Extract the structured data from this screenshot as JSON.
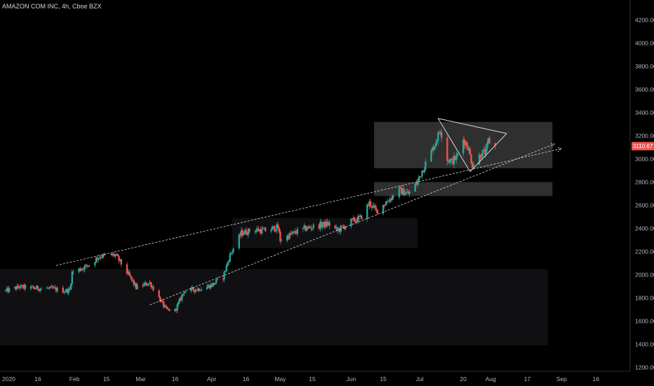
{
  "header": {
    "title": "AMAZON COM INC, 4h, Cboe BZX"
  },
  "colors": {
    "background": "#000000",
    "up": "#26a69a",
    "down": "#ef5350",
    "zone_light": "#2f2f2f",
    "zone_dark": "#101013",
    "trendline": "#d8d8d8",
    "axis_text": "#b2b5be"
  },
  "chart_data": {
    "type": "candlestick",
    "title": "AMAZON COM INC, 4h, Cboe BZX",
    "symbol": "AMAZON COM INC",
    "interval": "4h",
    "exchange": "Cboe BZX",
    "last_price": "3110.67",
    "ylim": [
      1150,
      4300
    ],
    "y_ticks": [
      "4200.00",
      "4000.00",
      "3800.00",
      "3600.00",
      "3400.00",
      "3200.00",
      "3000.00",
      "2800.00",
      "2600.00",
      "2400.00",
      "2200.00",
      "2000.00",
      "1800.00",
      "1600.00",
      "1400.00",
      "1200.00"
    ],
    "x_range": [
      "2020-01-01",
      "2020-09-30"
    ],
    "x_ticks": [
      {
        "label": "2020",
        "date": "2020-01-01"
      },
      {
        "label": "16",
        "date": "2020-01-16"
      },
      {
        "label": "Feb",
        "date": "2020-02-01"
      },
      {
        "label": "15",
        "date": "2020-02-15"
      },
      {
        "label": "Mar",
        "date": "2020-03-01"
      },
      {
        "label": "16",
        "date": "2020-03-16"
      },
      {
        "label": "Apr",
        "date": "2020-04-01"
      },
      {
        "label": "16",
        "date": "2020-04-16"
      },
      {
        "label": "May",
        "date": "2020-05-01"
      },
      {
        "label": "15",
        "date": "2020-05-15"
      },
      {
        "label": "Jun",
        "date": "2020-06-01"
      },
      {
        "label": "15",
        "date": "2020-06-15"
      },
      {
        "label": "Jul",
        "date": "2020-07-01"
      },
      {
        "label": "20",
        "date": "2020-07-20"
      },
      {
        "label": "Aug",
        "date": "2020-08-01"
      },
      {
        "label": "17",
        "date": "2020-08-17"
      },
      {
        "label": "Sep",
        "date": "2020-09-01"
      },
      {
        "label": "16",
        "date": "2020-09-16"
      }
    ],
    "price_path": [
      [
        "2020-01-02",
        1860
      ],
      [
        "2020-01-08",
        1895
      ],
      [
        "2020-01-14",
        1885
      ],
      [
        "2020-01-22",
        1880
      ],
      [
        "2020-01-28",
        1860
      ],
      [
        "2020-01-30",
        1870
      ],
      [
        "2020-01-31",
        2020
      ],
      [
        "2020-02-07",
        2080
      ],
      [
        "2020-02-12",
        2160
      ],
      [
        "2020-02-19",
        2170
      ],
      [
        "2020-02-24",
        2020
      ],
      [
        "2020-02-28",
        1890
      ],
      [
        "2020-03-05",
        1930
      ],
      [
        "2020-03-09",
        1800
      ],
      [
        "2020-03-12",
        1700
      ],
      [
        "2020-03-16",
        1690
      ],
      [
        "2020-03-20",
        1860
      ],
      [
        "2020-03-27",
        1880
      ],
      [
        "2020-04-01",
        1910
      ],
      [
        "2020-04-06",
        1980
      ],
      [
        "2020-04-09",
        2170
      ],
      [
        "2020-04-14",
        2360
      ],
      [
        "2020-04-20",
        2390
      ],
      [
        "2020-04-24",
        2380
      ],
      [
        "2020-04-30",
        2410
      ],
      [
        "2020-05-01",
        2300
      ],
      [
        "2020-05-08",
        2370
      ],
      [
        "2020-05-12",
        2400
      ],
      [
        "2020-05-19",
        2430
      ],
      [
        "2020-05-22",
        2440
      ],
      [
        "2020-05-26",
        2380
      ],
      [
        "2020-06-01",
        2460
      ],
      [
        "2020-06-05",
        2490
      ],
      [
        "2020-06-09",
        2620
      ],
      [
        "2020-06-12",
        2550
      ],
      [
        "2020-06-17",
        2640
      ],
      [
        "2020-06-22",
        2730
      ],
      [
        "2020-06-26",
        2700
      ],
      [
        "2020-06-30",
        2800
      ],
      [
        "2020-07-02",
        2900
      ],
      [
        "2020-07-06",
        3060
      ],
      [
        "2020-07-09",
        3200
      ],
      [
        "2020-07-10",
        3260
      ],
      [
        "2020-07-13",
        3000
      ],
      [
        "2020-07-15",
        2980
      ],
      [
        "2020-07-17",
        3010
      ],
      [
        "2020-07-20",
        3170
      ],
      [
        "2020-07-22",
        3110
      ],
      [
        "2020-07-24",
        2950
      ],
      [
        "2020-07-28",
        3050
      ],
      [
        "2020-07-30",
        3060
      ],
      [
        "2020-07-31",
        3160
      ],
      [
        "2020-08-03",
        3110
      ]
    ],
    "zones": [
      {
        "from": "2019-12-01",
        "to": "2020-08-26",
        "top": 2050,
        "bottom": 1390,
        "shade": "dark"
      },
      {
        "from": "2020-04-10",
        "to": "2020-06-30",
        "top": 2490,
        "bottom": 2230,
        "shade": "dark"
      },
      {
        "from": "2020-06-11",
        "to": "2020-08-28",
        "top": 3320,
        "bottom": 2920,
        "shade": "light"
      },
      {
        "from": "2020-06-11",
        "to": "2020-08-28",
        "top": 2800,
        "bottom": 2680,
        "shade": "light"
      }
    ],
    "trendlines": [
      {
        "x1": "2020-01-24",
        "y1": 2080,
        "x2": "2020-09-01",
        "y2": 3090,
        "style": "dashed",
        "arrow": true
      },
      {
        "x1": "2020-03-05",
        "y1": 1740,
        "x2": "2020-08-29",
        "y2": 3130,
        "style": "dashed",
        "arrow": true
      },
      {
        "x1": "2020-07-09",
        "y1": 3350,
        "x2": "2020-08-08",
        "y2": 3220,
        "style": "solid"
      },
      {
        "x1": "2020-07-09",
        "y1": 3350,
        "x2": "2020-07-23",
        "y2": 2890,
        "style": "solid"
      },
      {
        "x1": "2020-07-23",
        "y1": 2890,
        "x2": "2020-08-08",
        "y2": 3220,
        "style": "solid"
      }
    ]
  }
}
